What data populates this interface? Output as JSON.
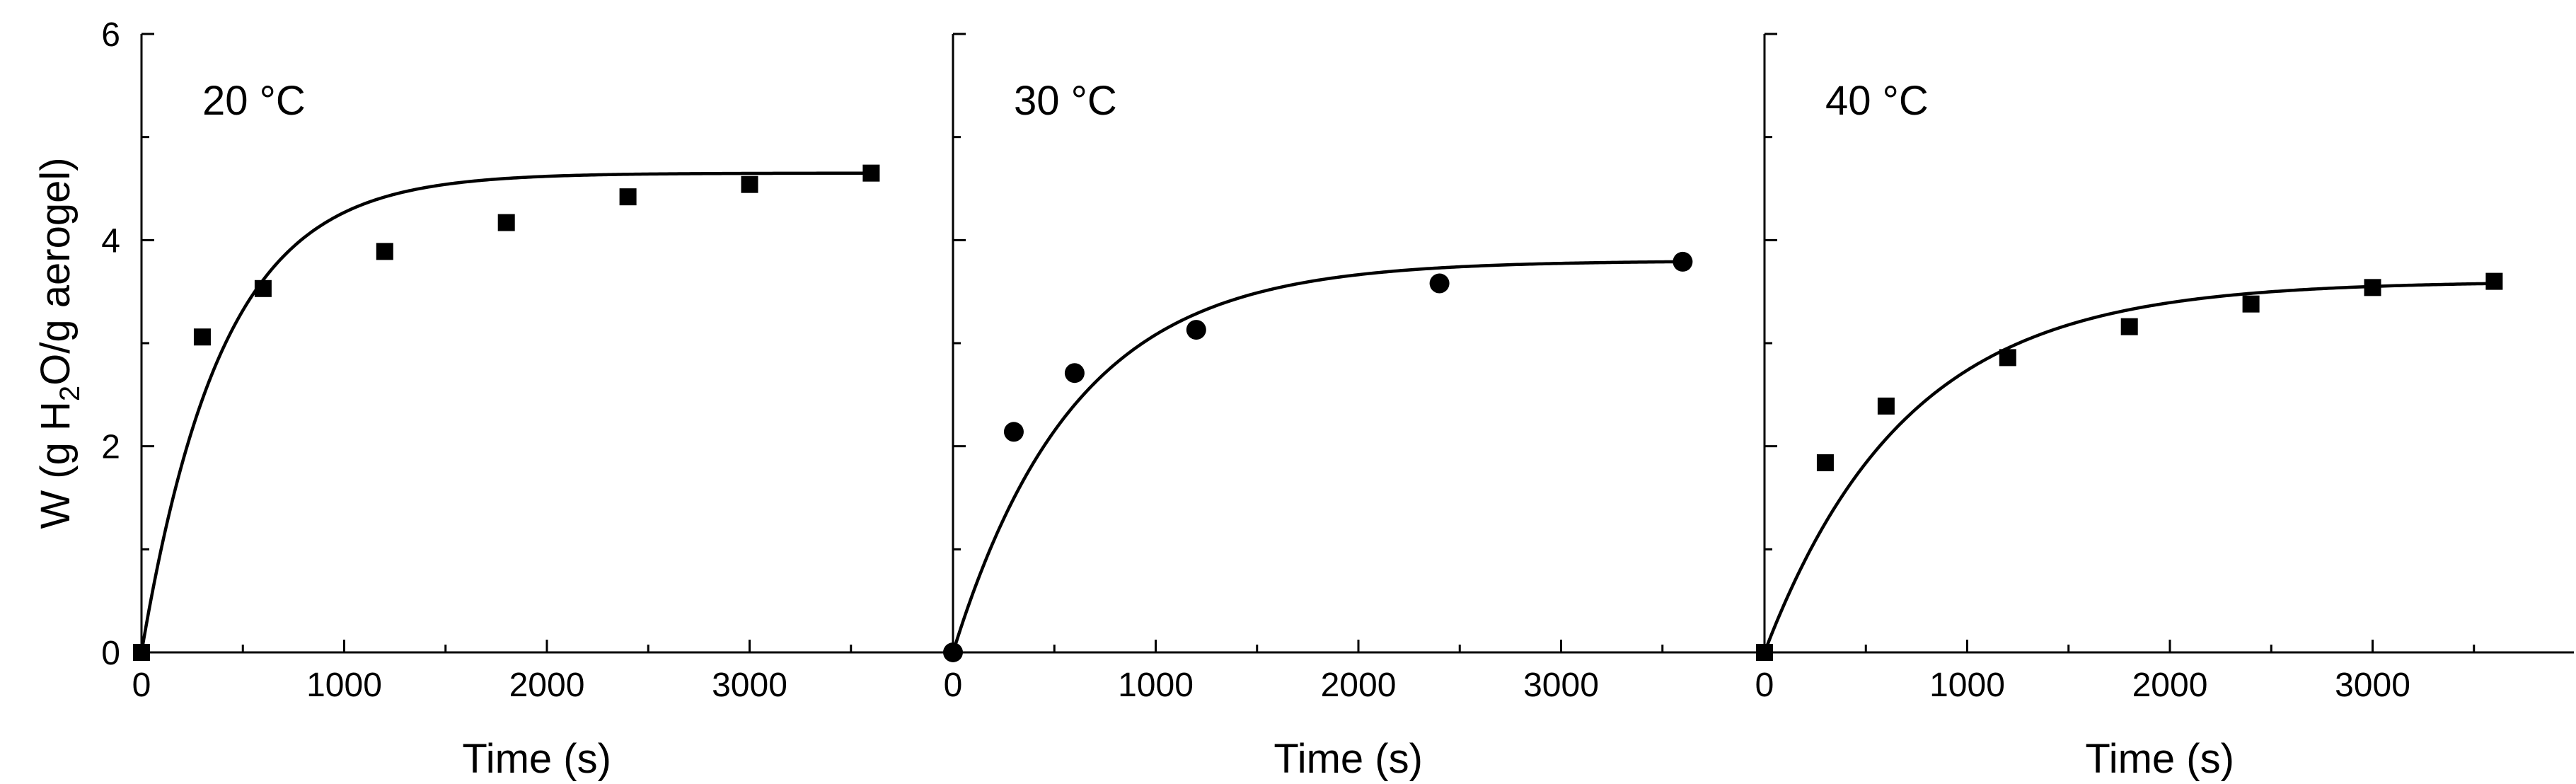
{
  "chart_data": {
    "type": "scatter",
    "ylabel": "W (g H₂O/g aerogel)",
    "ylabel_parts": {
      "pre": "W (g H",
      "sub": "2",
      "post": "O/g aerogel)"
    },
    "ylim": [
      0,
      6
    ],
    "yticks": [
      0,
      2,
      4,
      6
    ],
    "xlim": [
      0,
      3900
    ],
    "colors": {
      "marker": "#000000",
      "curve": "#000000",
      "axis": "#000000"
    },
    "panels": [
      {
        "title": "20 °C",
        "xlabel": "Time (s)",
        "xticks": [
          0,
          1000,
          2000,
          3000
        ],
        "marker": "square",
        "x": [
          0,
          300,
          600,
          1200,
          1800,
          2400,
          3000,
          3600
        ],
        "y": [
          0,
          3.06,
          3.53,
          3.89,
          4.17,
          4.42,
          4.54,
          4.65
        ],
        "fit": {
          "model": "W = Weq(1 - exp(-t/tau))",
          "Weq": 4.65,
          "tau": 400
        }
      },
      {
        "title": "30 °C",
        "xlabel": "Time (s)",
        "xticks": [
          0,
          1000,
          2000,
          3000
        ],
        "marker": "circle",
        "x": [
          0,
          300,
          600,
          1200,
          2400,
          3600
        ],
        "y": [
          0,
          2.14,
          2.71,
          3.13,
          3.58,
          3.79
        ],
        "fit": {
          "model": "W = Weq(1 - exp(-t/tau))",
          "Weq": 3.8,
          "tau": 600
        }
      },
      {
        "title": "40 °C",
        "xlabel": "Time (s)",
        "xticks": [
          0,
          1000,
          2000,
          3000
        ],
        "marker": "square",
        "x": [
          0,
          300,
          600,
          1200,
          1800,
          2400,
          3000,
          3600
        ],
        "y": [
          0,
          1.84,
          2.39,
          2.86,
          3.16,
          3.38,
          3.54,
          3.6
        ],
        "fit": {
          "model": "W = Weq(1 - exp(-t/tau))",
          "Weq": 3.6,
          "tau": 700
        }
      }
    ]
  }
}
